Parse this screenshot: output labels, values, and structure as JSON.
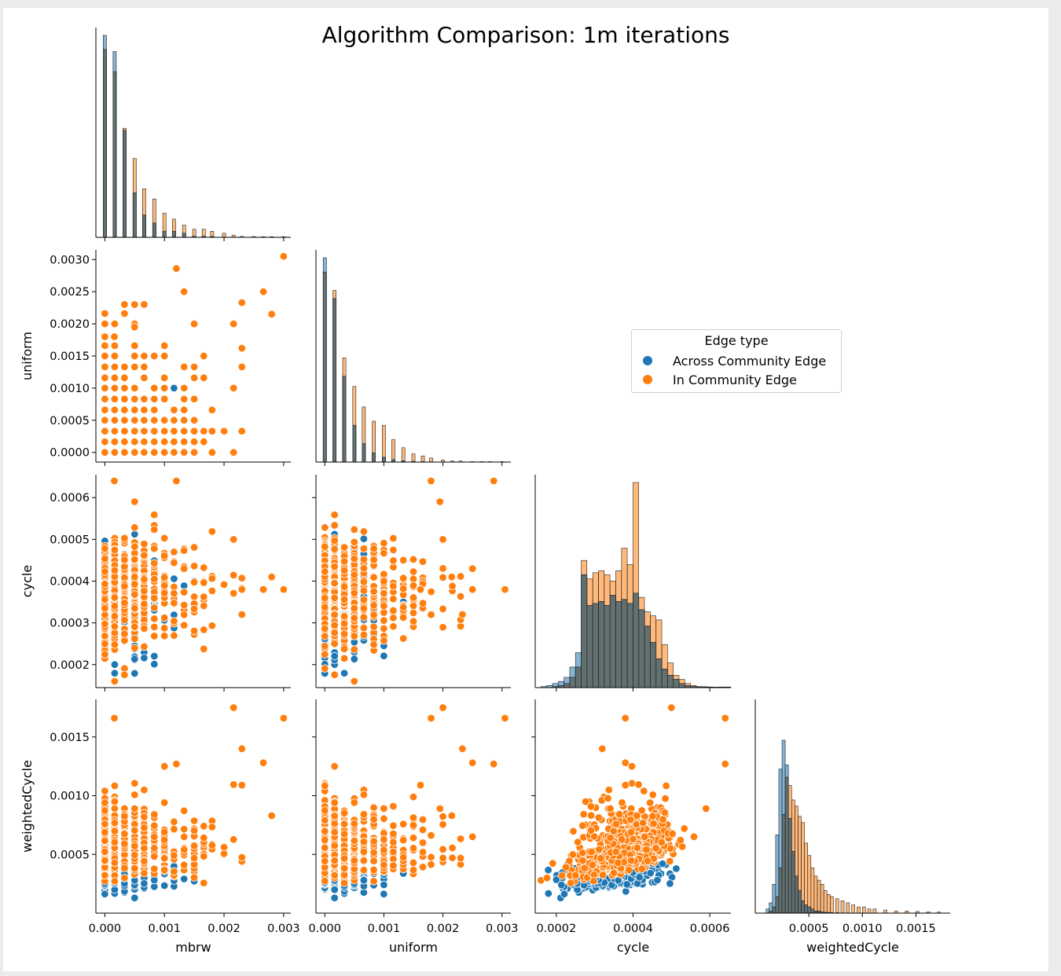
{
  "title": "Algorithm Comparison: 1m iterations",
  "legend": {
    "title": "Edge type",
    "entries": [
      {
        "label": "Across Community Edge",
        "color": "#1f77b4"
      },
      {
        "label": "In Community Edge",
        "color": "#ff7f0e"
      }
    ]
  },
  "chart_data": {
    "type": "scatter",
    "variables": [
      "mbrw",
      "uniform",
      "cycle",
      "weightedCycle"
    ],
    "hue": "Edge type",
    "series_colors": {
      "Across Community Edge": "#1f77b4",
      "In Community Edge": "#ff7f0e"
    },
    "axes": {
      "mbrw": {
        "lim": [
          -0.00015,
          0.00312
        ],
        "ticks": [
          0.0,
          0.001,
          0.002,
          0.003
        ],
        "tick_labels": [
          "0.000",
          "0.001",
          "0.002",
          "0.003"
        ]
      },
      "uniform": {
        "lim": [
          -0.00015,
          0.00315
        ],
        "ticks": [
          0.0,
          0.0005,
          0.001,
          0.0015,
          0.002,
          0.0025,
          0.003
        ],
        "tick_labels": [
          "0.0000",
          "0.0005",
          "0.0010",
          "0.0015",
          "0.0020",
          "0.0025",
          "0.0030"
        ],
        "x_ticks": [
          0.0,
          0.001,
          0.002,
          0.003
        ],
        "x_tick_labels": [
          "0.000",
          "0.001",
          "0.002",
          "0.003"
        ]
      },
      "cycle": {
        "lim": [
          0.000145,
          0.000655
        ],
        "ticks": [
          0.0002,
          0.0003,
          0.0004,
          0.0005,
          0.0006
        ],
        "tick_labels": [
          "0.0002",
          "0.0003",
          "0.0004",
          "0.0005",
          "0.0006"
        ],
        "x_ticks": [
          0.0002,
          0.0004,
          0.0006
        ],
        "x_tick_labels": [
          "0.0002",
          "0.0004",
          "0.0006"
        ]
      },
      "weightedCycle": {
        "lim": [
          0.0,
          0.00182
        ],
        "ticks": [
          0.0005,
          0.001,
          0.0015
        ],
        "tick_labels": [
          "0.0005",
          "0.0010",
          "0.0015"
        ]
      }
    },
    "histograms": {
      "mbrw": {
        "bins": [
          0.0,
          0.000165,
          0.00033,
          0.0005,
          0.00066,
          0.00083,
          0.001,
          0.00116,
          0.00133,
          0.0015,
          0.00166,
          0.0018,
          0.002,
          0.00216,
          0.0023,
          0.0025,
          0.00266,
          0.0028,
          0.003
        ],
        "Across Community Edge": [
          100,
          92,
          53,
          22,
          11,
          7,
          3,
          3,
          2,
          0.5,
          0.5,
          0.4,
          0,
          0,
          0,
          0,
          0,
          0,
          0
        ],
        "In Community Edge": [
          93,
          82,
          54,
          39,
          24,
          19,
          12,
          9,
          6,
          4,
          4,
          3,
          2,
          1,
          0.5,
          0.4,
          0.3,
          0.3,
          0.3
        ]
      },
      "uniform": {
        "bins": [
          0.0,
          0.000165,
          0.00033,
          0.0005,
          0.00066,
          0.00083,
          0.001,
          0.00116,
          0.00133,
          0.0015,
          0.00166,
          0.0018,
          0.002,
          0.00216,
          0.0023,
          0.0025,
          0.00266,
          0.0028,
          0.003
        ],
        "Across Community Edge": [
          100,
          80,
          42,
          18,
          9,
          4.5,
          2.3,
          1.2,
          0.6,
          0.3,
          0.2,
          0.1,
          0,
          0,
          0,
          0,
          0,
          0,
          0
        ],
        "In Community Edge": [
          93,
          84,
          51,
          37,
          27,
          20,
          18,
          11,
          7,
          4,
          3,
          2,
          1,
          0.5,
          0.5,
          0.2,
          0.2,
          0.2,
          0.2
        ]
      },
      "cycle": {
        "bins": [
          0.00016,
          0.000175,
          0.00019,
          0.000205,
          0.00022,
          0.000235,
          0.00025,
          0.000265,
          0.00028,
          0.000295,
          0.00031,
          0.000325,
          0.00034,
          0.000355,
          0.00037,
          0.000385,
          0.0004,
          0.000415,
          0.00043,
          0.000445,
          0.00046,
          0.000475,
          0.00049,
          0.000505,
          0.00052,
          0.000535,
          0.00055,
          0.000565,
          0.00058,
          0.000595,
          0.00061,
          0.000625,
          0.00064
        ],
        "Across Community Edge": [
          0.5,
          1,
          2,
          3,
          5,
          10,
          17,
          55,
          40,
          41,
          42,
          40,
          45,
          42,
          43,
          41,
          46,
          38,
          30,
          22,
          14,
          9,
          6,
          4,
          2,
          1,
          0.5,
          0.4,
          0.3,
          0.2,
          0.2,
          0,
          0
        ],
        "In Community Edge": [
          0,
          0,
          0.5,
          1,
          2,
          5,
          10,
          62,
          53,
          56,
          57,
          55,
          52,
          57,
          68,
          60,
          100,
          44,
          37,
          35,
          33,
          21,
          12,
          6,
          4,
          2,
          1,
          0.5,
          0.4,
          0.3,
          0.2,
          0.3,
          0.3
        ]
      },
      "weightedCycle": {
        "bins": [
          0.0001,
          0.00013,
          0.00016,
          0.00019,
          0.00022,
          0.00025,
          0.00028,
          0.00031,
          0.00034,
          0.00037,
          0.0004,
          0.00043,
          0.00046,
          0.00049,
          0.00052,
          0.00055,
          0.00058,
          0.00061,
          0.00064,
          0.00067,
          0.0007,
          0.00075,
          0.0008,
          0.00085,
          0.0009,
          0.00095,
          0.001,
          0.00105,
          0.0011,
          0.0012,
          0.0013,
          0.0014,
          0.0015,
          0.0016,
          0.0017
        ],
        "Across Community Edge": [
          2,
          5,
          14,
          38,
          70,
          84,
          72,
          46,
          30,
          18,
          11,
          6,
          4,
          3,
          2,
          1,
          1,
          0.5,
          0.4,
          0.3,
          0.2,
          0.2,
          0.1,
          0.1,
          0,
          0,
          0,
          0,
          0,
          0,
          0,
          0,
          0,
          0,
          0
        ],
        "In Community Edge": [
          0,
          1,
          3,
          8,
          22,
          48,
          66,
          62,
          55,
          52,
          47,
          44,
          34,
          28,
          22,
          18,
          16,
          14,
          11,
          9,
          8,
          7,
          6,
          5,
          4,
          3,
          3,
          2,
          2,
          1.5,
          1,
          1,
          0.8,
          0.6,
          0.5
        ]
      }
    },
    "scatter": {
      "generator": "approximate point cloud reproducing the visible distribution",
      "points_per_series": {
        "Across Community Edge": 260,
        "In Community Edge": 540
      },
      "mbrw_uniform_levels": [
        0.0,
        0.000165,
        0.00033,
        0.0005,
        0.00066,
        0.00083,
        0.001,
        0.00116,
        0.00133,
        0.0015,
        0.00166,
        0.0018,
        0.002,
        0.00216,
        0.0023,
        0.0025,
        0.00266,
        0.0028,
        0.003
      ],
      "outliers": [
        {
          "series": "In Community Edge",
          "mbrw": 0.003,
          "uniform": 0.00305,
          "cycle": 0.00038,
          "weightedCycle": 0.00166
        },
        {
          "series": "In Community Edge",
          "mbrw": 0.0028,
          "uniform": 0.00215,
          "cycle": 0.00041,
          "weightedCycle": 0.00083
        },
        {
          "series": "In Community Edge",
          "mbrw": 0.00266,
          "uniform": 0.0025,
          "cycle": 0.00038,
          "weightedCycle": 0.00128
        },
        {
          "series": "In Community Edge",
          "mbrw": 0.0023,
          "uniform": 0.00233,
          "cycle": 0.00032,
          "weightedCycle": 0.0014
        },
        {
          "series": "In Community Edge",
          "mbrw": 0.00216,
          "uniform": 0.002,
          "cycle": 0.0005,
          "weightedCycle": 0.00175
        },
        {
          "series": "In Community Edge",
          "mbrw": 0.0012,
          "uniform": 0.00286,
          "cycle": 0.00064,
          "weightedCycle": 0.00127
        },
        {
          "series": "In Community Edge",
          "mbrw": 0.00016,
          "uniform": 0.0018,
          "cycle": 0.00064,
          "weightedCycle": 0.00166
        },
        {
          "series": "Across Community Edge",
          "mbrw": 0.00133,
          "uniform": 0.0025,
          "cycle": 0.00043,
          "weightedCycle": 0.00065
        },
        {
          "series": "Across Community Edge",
          "mbrw": 0.0023,
          "uniform": 0.00162,
          "cycle": 0.00038,
          "weightedCycle": 0.00109
        },
        {
          "series": "Across Community Edge",
          "mbrw": 0.0005,
          "uniform": 0.00195,
          "cycle": 0.00059,
          "weightedCycle": 0.00089
        }
      ]
    }
  }
}
